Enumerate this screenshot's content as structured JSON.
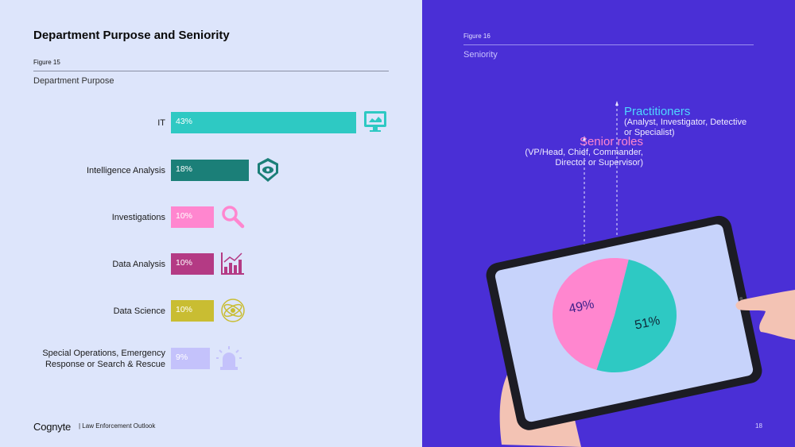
{
  "page": {
    "title": "Department Purpose and Seniority",
    "footer_brand": "Cognyte",
    "footer_text": "| Law Enforcement Outlook",
    "page_number": "18"
  },
  "figure15": {
    "number": "Figure 15",
    "subtitle": "Department Purpose"
  },
  "figure16": {
    "number": "Figure 16",
    "subtitle": "Seniority",
    "senior_title": "Senior roles",
    "senior_desc": "(VP/Head, Chief, Commander, Director or Supervisor)",
    "practitioners_title": "Practitioners",
    "practitioners_desc": "(Analyst, Investigator, Detective or Specialist)"
  },
  "chart_data": [
    {
      "type": "bar",
      "orientation": "horizontal",
      "categories": [
        "IT",
        "Intelligence Analysis",
        "Investigations",
        "Data Analysis",
        "Data Science",
        "Special Operations, Emergency Response or Search & Rescue"
      ],
      "values": [
        43,
        18,
        10,
        10,
        10,
        9
      ],
      "labels": [
        "43%",
        "18%",
        "10%",
        "10%",
        "10%",
        "9%"
      ],
      "colors": [
        "#2ec9c3",
        "#1b7f78",
        "#ff86cf",
        "#b43a84",
        "#c9bd32",
        "#c4c2fb"
      ],
      "icons": [
        "monitor-icon",
        "shield-eye-icon",
        "magnifier-icon",
        "bar-chart-icon",
        "atom-icon",
        "alarm-light-icon"
      ]
    },
    {
      "type": "pie",
      "categories": [
        "Senior roles",
        "Practitioners"
      ],
      "values": [
        49,
        51
      ],
      "labels": [
        "49%",
        "51%"
      ],
      "colors": [
        "#ff86cf",
        "#2ec9c3"
      ]
    }
  ]
}
